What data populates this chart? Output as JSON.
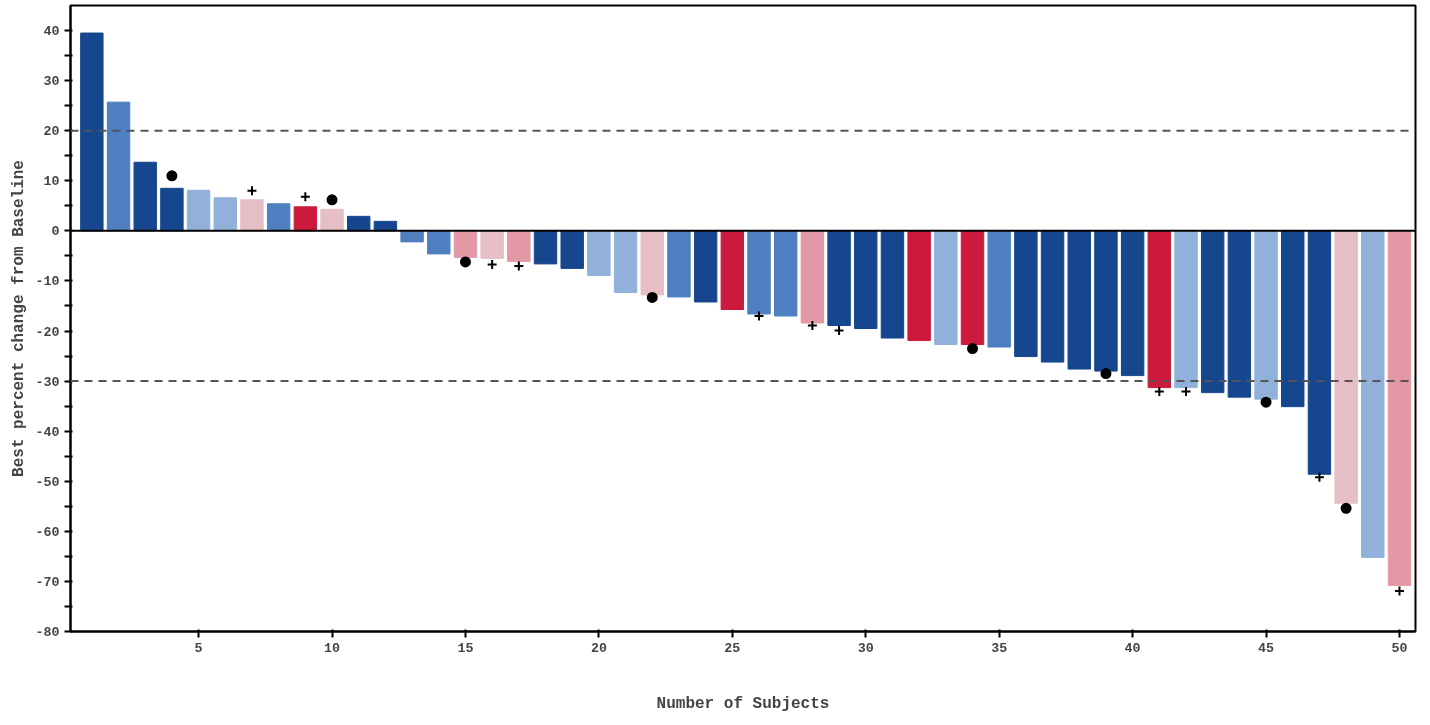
{
  "chart_data": {
    "type": "bar",
    "xlabel": "Number of Subjects",
    "ylabel": "Best percent change from Baseline",
    "x": [
      1,
      2,
      3,
      4,
      5,
      6,
      7,
      8,
      9,
      10,
      11,
      12,
      13,
      14,
      15,
      16,
      17,
      18,
      19,
      20,
      21,
      22,
      23,
      24,
      25,
      26,
      27,
      28,
      29,
      30,
      31,
      32,
      33,
      34,
      35,
      36,
      37,
      38,
      39,
      40,
      41,
      42,
      43,
      44,
      45,
      46,
      47,
      48,
      49,
      50
    ],
    "values": [
      39.5,
      25.7,
      13.7,
      8.5,
      8.1,
      6.6,
      6.2,
      5.4,
      4.8,
      4.3,
      2.9,
      1.9,
      -2.2,
      -4.6,
      -5.3,
      -5.5,
      -6.1,
      -6.6,
      -7.5,
      -8.9,
      -12.3,
      -12.8,
      -13.2,
      -14.2,
      -15.7,
      -16.6,
      -17.0,
      -18.4,
      -18.9,
      -19.5,
      -21.4,
      -21.9,
      -22.7,
      -22.7,
      -23.2,
      -25.1,
      -26.2,
      -27.6,
      -28.0,
      -28.9,
      -31.3,
      -31.3,
      -32.3,
      -33.2,
      -33.6,
      -35.1,
      -48.6,
      -54.4,
      -65.2,
      -70.8
    ],
    "colors": [
      "#16478e",
      "#4f7fc0",
      "#16478e",
      "#16478e",
      "#92b1da",
      "#92b1da",
      "#e6bfc6",
      "#4f7fc0",
      "#cb1a3c",
      "#e6bfc6",
      "#16478e",
      "#16478e",
      "#4f7fc0",
      "#4f7fc0",
      "#e497a5",
      "#e6bfc6",
      "#e497a5",
      "#16478e",
      "#16478e",
      "#92b1da",
      "#92b1da",
      "#e6bfc6",
      "#4f7fc0",
      "#16478e",
      "#cb1a3c",
      "#4f7fc0",
      "#4f7fc0",
      "#e497a5",
      "#16478e",
      "#16478e",
      "#16478e",
      "#cb1a3c",
      "#92b1da",
      "#cb1a3c",
      "#4f7fc0",
      "#16478e",
      "#16478e",
      "#16478e",
      "#16478e",
      "#16478e",
      "#cb1a3c",
      "#92b1da",
      "#16478e",
      "#16478e",
      "#92b1da",
      "#16478e",
      "#16478e",
      "#e6bfc6",
      "#92b1da",
      "#e497a5"
    ],
    "series": [
      {
        "type": "scatter",
        "marker": "circle",
        "color": "#000000",
        "x": [
          4,
          10,
          15,
          22,
          34,
          39,
          45,
          48
        ],
        "values": [
          11.0,
          6.2,
          -6.2,
          -13.3,
          -23.5,
          -28.5,
          -34.2,
          -55.4
        ]
      },
      {
        "type": "scatter",
        "marker": "cross",
        "color": "#000000",
        "x": [
          7,
          9,
          16,
          17,
          26,
          28,
          29,
          41,
          42,
          47,
          50
        ],
        "values": [
          8.0,
          6.8,
          -6.7,
          -7.0,
          -17.0,
          -18.9,
          -19.9,
          -32.1,
          -32.1,
          -49.2,
          -71.9
        ]
      }
    ],
    "xlim": [
      0.2,
      50.6
    ],
    "xticks": [
      5,
      10,
      15,
      20,
      25,
      30,
      35,
      40,
      45,
      50
    ],
    "ylim": [
      -80,
      45
    ],
    "yticks": [
      -80,
      {
        "value": -75,
        "label": null
      },
      -70,
      {
        "value": -65,
        "label": null
      },
      -60,
      {
        "value": -55,
        "label": null
      },
      -50,
      {
        "value": -45,
        "label": null
      },
      -40,
      {
        "value": -35,
        "label": null
      },
      -30,
      {
        "value": -25,
        "label": null
      },
      -20,
      {
        "value": -15,
        "label": null
      },
      -10,
      {
        "value": -5,
        "label": null
      },
      0,
      {
        "value": 5,
        "label": null
      },
      10,
      {
        "value": 15,
        "label": null
      },
      20,
      {
        "value": 25,
        "label": null
      },
      30,
      {
        "value": 35,
        "label": null
      },
      40
    ],
    "ref_lines": [
      {
        "axis": "y",
        "value": 20,
        "color": "#555555",
        "line_style": "dashed"
      },
      {
        "axis": "y",
        "value": -30,
        "color": "#555555",
        "line_style": "dashed"
      }
    ],
    "grid": false
  }
}
